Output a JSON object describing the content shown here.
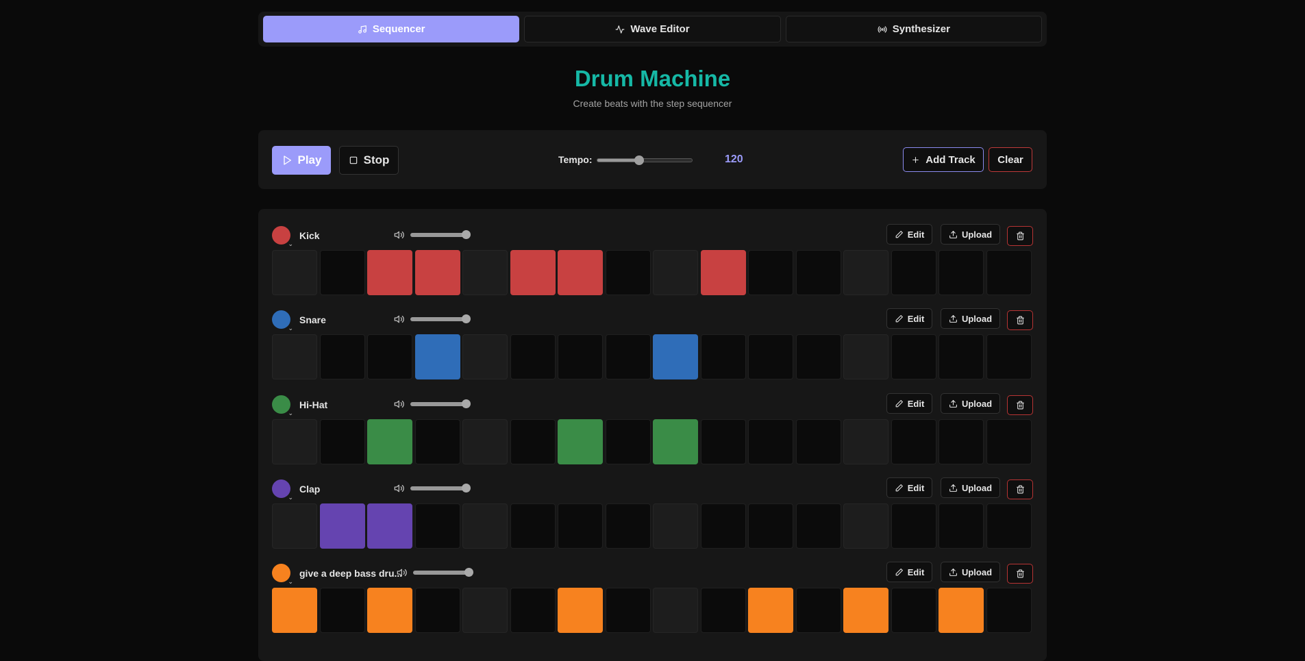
{
  "tabs": [
    {
      "label": "Sequencer",
      "icon": "music-note-icon",
      "active": true
    },
    {
      "label": "Wave Editor",
      "icon": "activity-wave-icon",
      "active": false
    },
    {
      "label": "Synthesizer",
      "icon": "radio-waves-icon",
      "active": false
    }
  ],
  "header": {
    "title": "Drum Machine",
    "subtitle": "Create beats with the step sequencer"
  },
  "controls": {
    "play_label": "Play",
    "stop_label": "Stop",
    "tempo_label": "Tempo:",
    "tempo_value": "120",
    "tempo_fraction": 0.44,
    "add_track_label": "Add Track",
    "clear_label": "Clear"
  },
  "track_buttons": {
    "edit_label": "Edit",
    "upload_label": "Upload"
  },
  "colors": {
    "accent": "#9b9bfa",
    "title": "#16b8a6",
    "delete": "#b83434"
  },
  "tracks": [
    {
      "name": "Kick",
      "color": "#c84141",
      "volume": 1.0,
      "steps": [
        0,
        0,
        1,
        1,
        0,
        1,
        1,
        0,
        0,
        1,
        0,
        0,
        0,
        0,
        0,
        0
      ]
    },
    {
      "name": "Snare",
      "color": "#2f6db8",
      "volume": 1.0,
      "steps": [
        0,
        0,
        0,
        1,
        0,
        0,
        0,
        0,
        1,
        0,
        0,
        0,
        0,
        0,
        0,
        0
      ]
    },
    {
      "name": "Hi-Hat",
      "color": "#3a8c47",
      "volume": 1.0,
      "steps": [
        0,
        0,
        1,
        0,
        0,
        0,
        1,
        0,
        1,
        0,
        0,
        0,
        0,
        0,
        0,
        0
      ]
    },
    {
      "name": "Clap",
      "color": "#6544b0",
      "volume": 1.0,
      "steps": [
        0,
        1,
        1,
        0,
        0,
        0,
        0,
        0,
        0,
        0,
        0,
        0,
        0,
        0,
        0,
        0
      ]
    },
    {
      "name": "give a deep bass dru...",
      "color": "#f7821f",
      "volume": 1.0,
      "steps": [
        1,
        0,
        1,
        0,
        0,
        0,
        1,
        0,
        0,
        0,
        1,
        0,
        1,
        0,
        1,
        0
      ]
    }
  ]
}
